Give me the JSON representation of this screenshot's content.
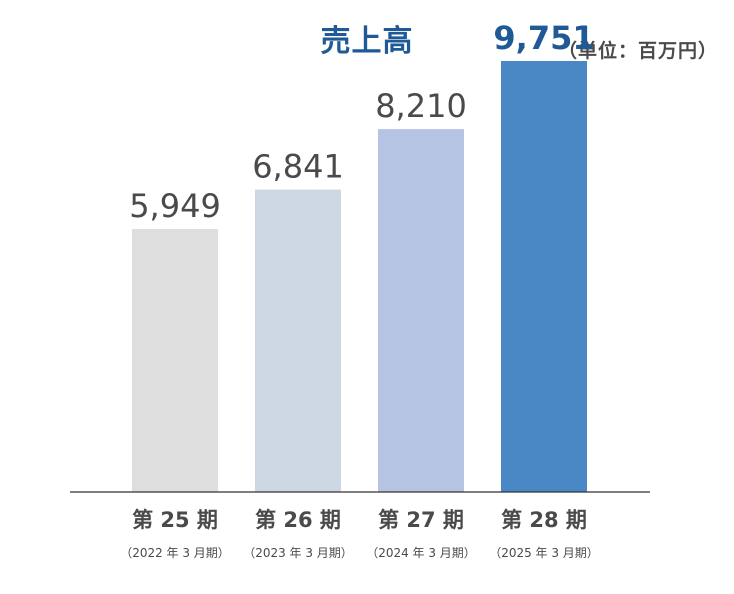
{
  "chart_data": {
    "type": "bar",
    "title": "売上高",
    "unit_label": "（単位：百万円）",
    "categories": [
      "第 25 期",
      "第 26 期",
      "第 27 期",
      "第 28 期"
    ],
    "sublabels": [
      "（2022 年 3 月期）",
      "（2023 年 3 月期）",
      "（2024 年 3 月期）",
      "（2025 年 3 月期）"
    ],
    "values": [
      5949,
      6841,
      8210,
      9751
    ],
    "value_labels": [
      "5,949",
      "6,841",
      "8,210",
      "9,751"
    ],
    "bar_colors": [
      "#dedede",
      "#cdd7e3",
      "#b4c4e2",
      "#4a87c5"
    ],
    "value_label_colors": [
      "#4a4a4a",
      "#4a4a4a",
      "#4a4a4a",
      "#1f5a96"
    ],
    "xlabel": "",
    "ylabel": "",
    "ylim": [
      0,
      10000
    ],
    "grid": false
  }
}
